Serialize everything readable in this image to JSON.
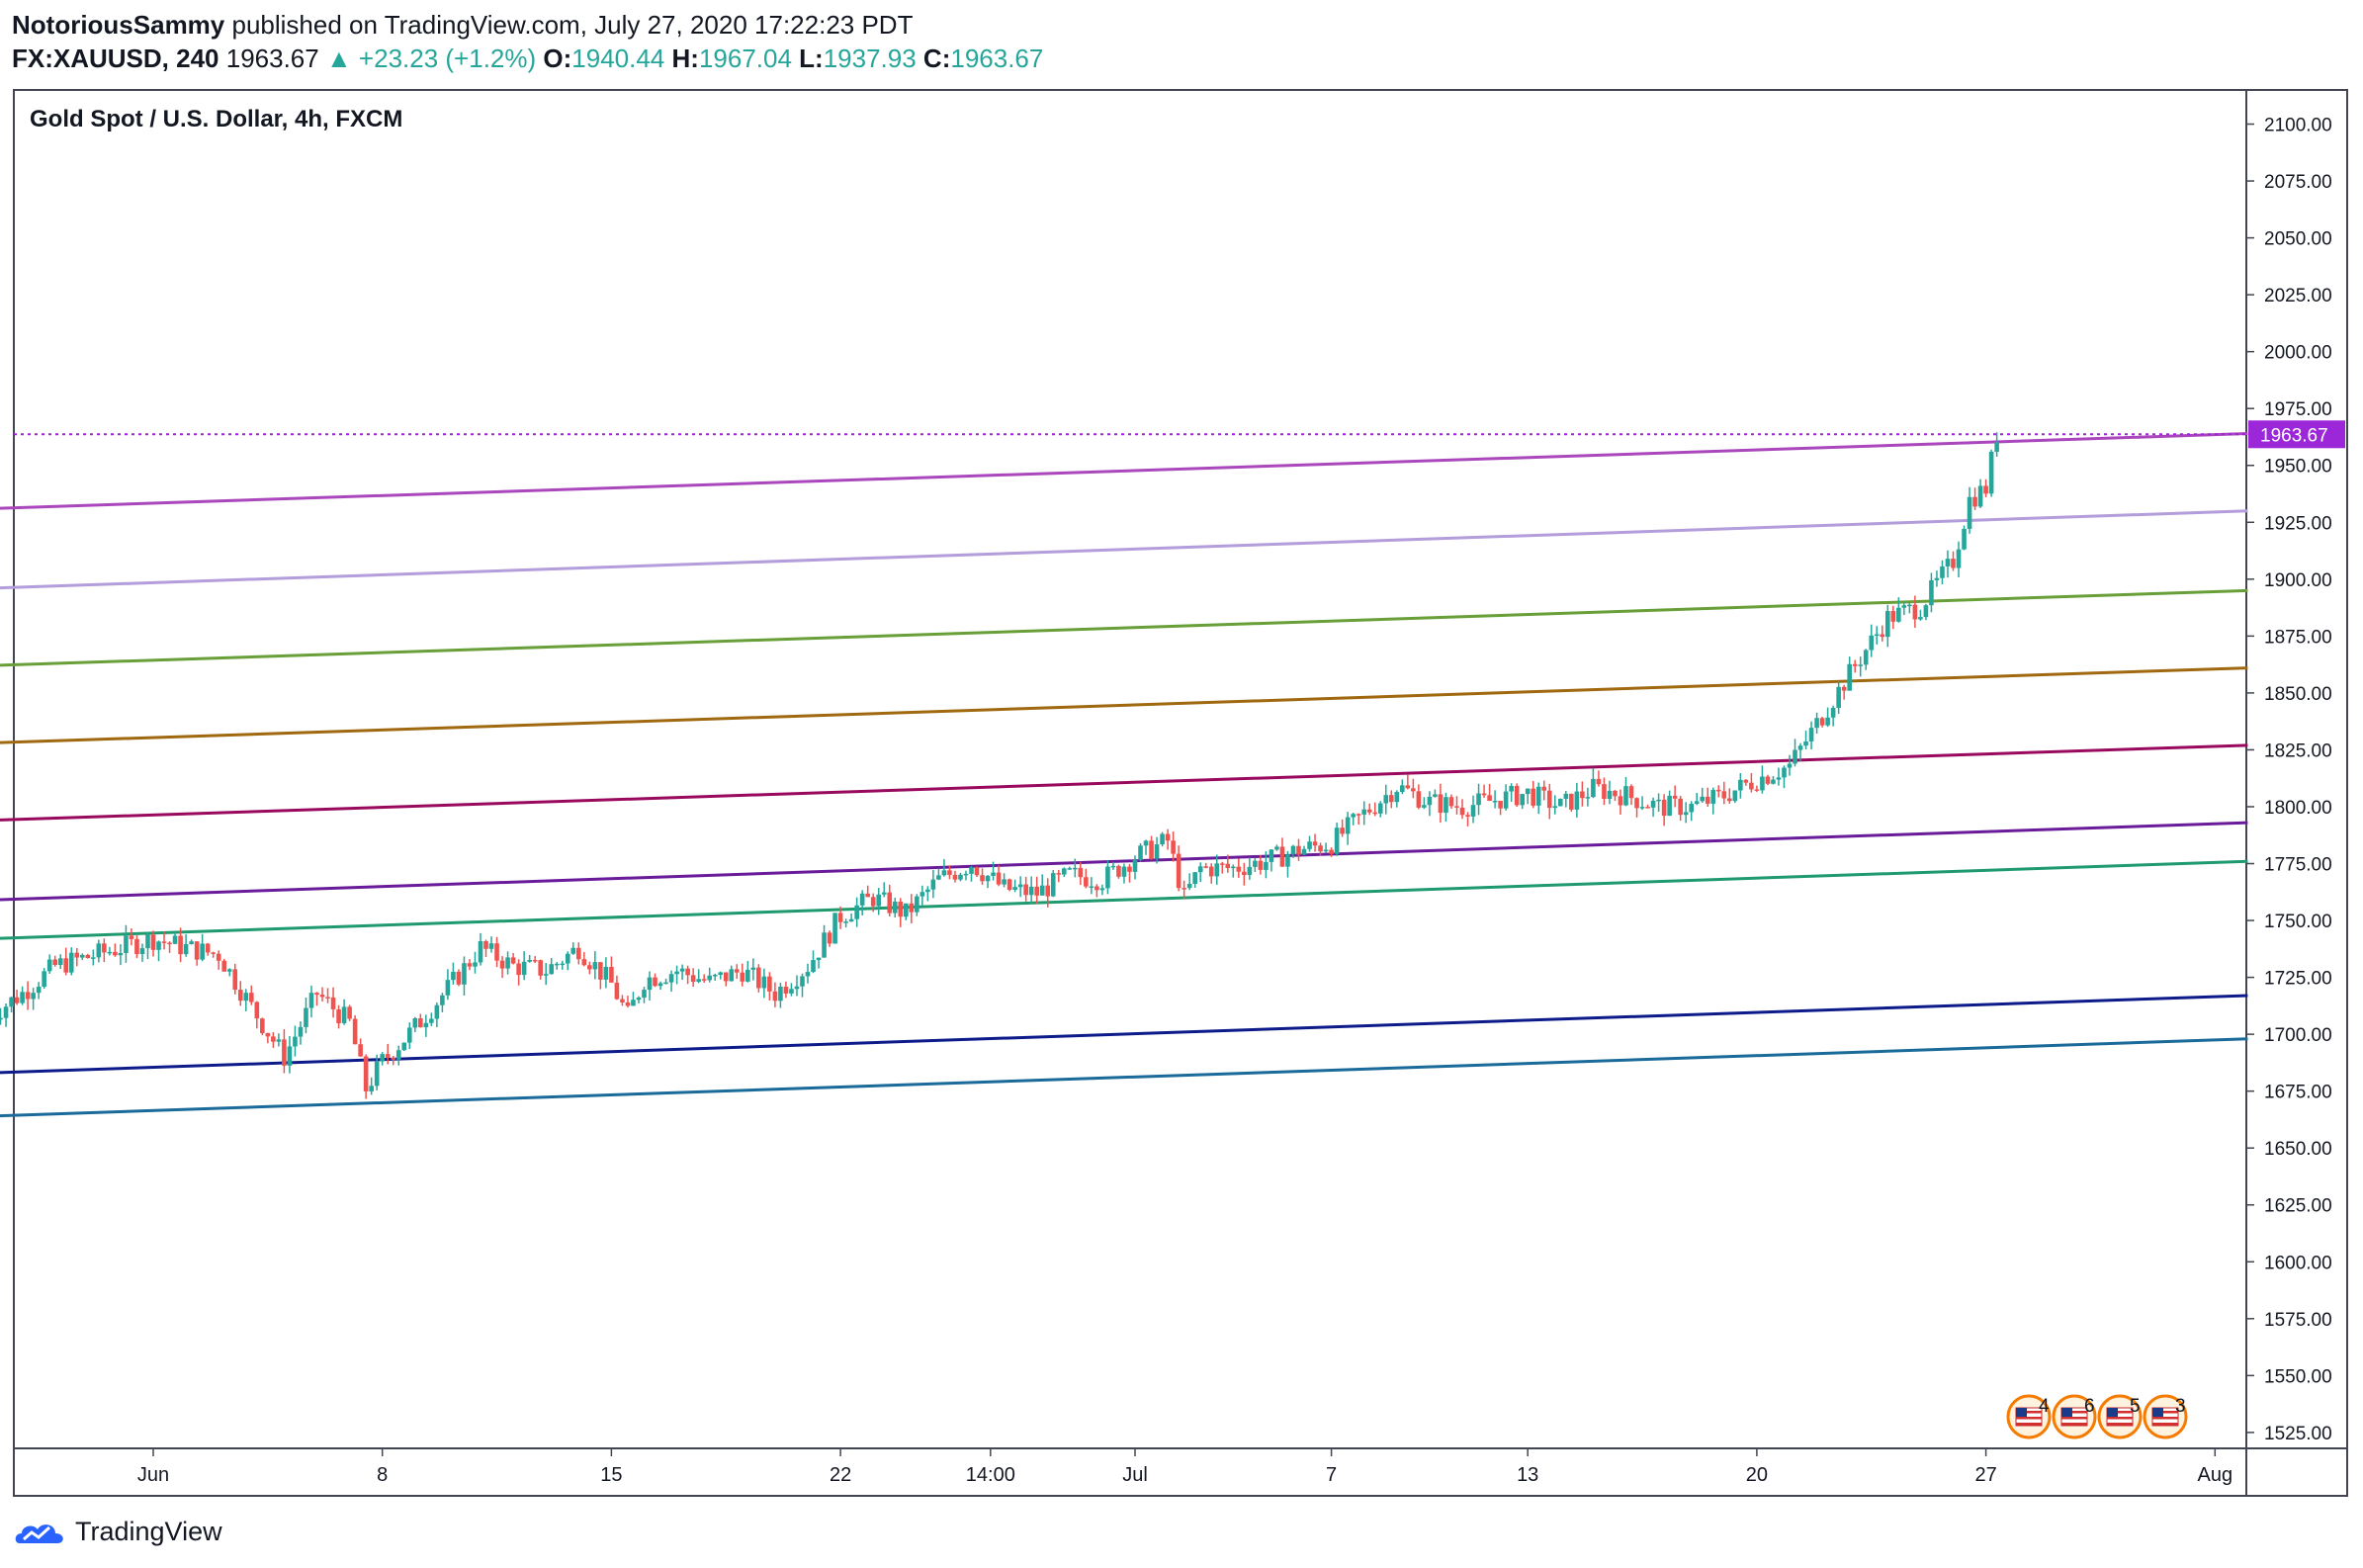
{
  "header": {
    "author": "NotoriousSammy",
    "published_text": "published on TradingView.com, July 27, 2020 17:22:23 PDT",
    "symbol": "FX:XAUUSD, 240",
    "price": "1963.67",
    "change_arrow": "▲",
    "change": "+23.23 (+1.2%)",
    "open_label": "O:",
    "open": "1940.44",
    "high_label": "H:",
    "high": "1967.04",
    "low_label": "L:",
    "low": "1937.93",
    "close_label": "C:",
    "close": "1963.67"
  },
  "footer": {
    "brand": "TradingView",
    "logo_icon": "tradingview-cloud-icon"
  },
  "colors": {
    "up": "#26a69a",
    "down": "#ef5350",
    "price_tag": "#9c27d8"
  },
  "chart_data": {
    "type": "candlestick",
    "title": "Gold Spot / U.S. Dollar, 4h, FXCM",
    "ylim": [
      1518,
      2115
    ],
    "grid": false,
    "y_ticks": [
      "2100.00",
      "2075.00",
      "2050.00",
      "2025.00",
      "2000.00",
      "1975.00",
      "1950.00",
      "1925.00",
      "1900.00",
      "1875.00",
      "1850.00",
      "1825.00",
      "1800.00",
      "1775.00",
      "1750.00",
      "1725.00",
      "1700.00",
      "1675.00",
      "1650.00",
      "1625.00",
      "1600.00",
      "1575.00",
      "1550.00",
      "1525.00"
    ],
    "x_ticks": [
      {
        "label": "Jun",
        "date": "2020-06-01"
      },
      {
        "label": "8",
        "date": "2020-06-08"
      },
      {
        "label": "15",
        "date": "2020-06-15"
      },
      {
        "label": "22",
        "date": "2020-06-22"
      },
      {
        "label": "14:00",
        "date": "2020-06-26T14:00"
      },
      {
        "label": "Jul",
        "date": "2020-07-01"
      },
      {
        "label": "7",
        "date": "2020-07-07"
      },
      {
        "label": "13",
        "date": "2020-07-13"
      },
      {
        "label": "20",
        "date": "2020-07-20"
      },
      {
        "label": "27",
        "date": "2020-07-27"
      },
      {
        "label": "Aug",
        "date": "2020-08-03"
      }
    ],
    "last_price": {
      "value": 1963.67,
      "label": "1963.67"
    },
    "channel_lines": [
      {
        "color": "#ab47bc",
        "start": [
          "2020-05-27",
          1931
        ],
        "end": [
          "2020-08-04",
          1964
        ]
      },
      {
        "color": "#b39ddb",
        "start": [
          "2020-05-27",
          1896
        ],
        "end": [
          "2020-08-04",
          1930
        ]
      },
      {
        "color": "#689f38",
        "start": [
          "2020-05-27",
          1862
        ],
        "end": [
          "2020-08-04",
          1895
        ]
      },
      {
        "color": "#a0680f",
        "start": [
          "2020-05-27",
          1828
        ],
        "end": [
          "2020-08-04",
          1861
        ]
      },
      {
        "color": "#990a5e",
        "start": [
          "2020-05-27",
          1794
        ],
        "end": [
          "2020-08-04",
          1827
        ]
      },
      {
        "color": "#6a1b9a",
        "start": [
          "2020-05-27",
          1759
        ],
        "end": [
          "2020-08-04",
          1793
        ]
      },
      {
        "color": "#1e9a6e",
        "start": [
          "2020-05-27",
          1742
        ],
        "end": [
          "2020-08-04",
          1776
        ]
      },
      {
        "color": "#0d1a8a",
        "start": [
          "2020-05-27",
          1683
        ],
        "end": [
          "2020-08-04",
          1717
        ]
      },
      {
        "color": "#1a6a9a",
        "start": [
          "2020-05-27",
          1664
        ],
        "end": [
          "2020-08-04",
          1698
        ]
      }
    ],
    "price_path": [
      [
        "2020-05-27",
        1708
      ],
      [
        "2020-05-28",
        1718
      ],
      [
        "2020-05-29",
        1730
      ],
      [
        "2020-06-01",
        1742
      ],
      [
        "2020-06-02",
        1738
      ],
      [
        "2020-06-03",
        1735
      ],
      [
        "2020-06-04",
        1712
      ],
      [
        "2020-06-05",
        1690
      ],
      [
        "2020-06-06",
        1718
      ],
      [
        "2020-06-07",
        1705
      ],
      [
        "2020-06-07T12:00",
        1676
      ],
      [
        "2020-06-08",
        1688
      ],
      [
        "2020-06-09",
        1703
      ],
      [
        "2020-06-10",
        1720
      ],
      [
        "2020-06-11",
        1738
      ],
      [
        "2020-06-12",
        1730
      ],
      [
        "2020-06-13",
        1728
      ],
      [
        "2020-06-14",
        1738
      ],
      [
        "2020-06-15",
        1722
      ],
      [
        "2020-06-15T12:00",
        1708
      ],
      [
        "2020-06-16",
        1724
      ],
      [
        "2020-06-17",
        1728
      ],
      [
        "2020-06-18",
        1723
      ],
      [
        "2020-06-19",
        1728
      ],
      [
        "2020-06-20",
        1718
      ],
      [
        "2020-06-21",
        1730
      ],
      [
        "2020-06-22",
        1752
      ],
      [
        "2020-06-23",
        1760
      ],
      [
        "2020-06-24",
        1753
      ],
      [
        "2020-06-25",
        1768
      ],
      [
        "2020-06-26",
        1775
      ],
      [
        "2020-06-27",
        1764
      ],
      [
        "2020-06-28",
        1762
      ],
      [
        "2020-06-29",
        1770
      ],
      [
        "2020-06-30",
        1768
      ],
      [
        "2020-07-01",
        1778
      ],
      [
        "2020-07-02",
        1785
      ],
      [
        "2020-07-02T12:00",
        1760
      ],
      [
        "2020-07-03",
        1773
      ],
      [
        "2020-07-04",
        1773
      ],
      [
        "2020-07-05",
        1776
      ],
      [
        "2020-07-06",
        1781
      ],
      [
        "2020-07-07",
        1784
      ],
      [
        "2020-07-08",
        1797
      ],
      [
        "2020-07-09",
        1809
      ],
      [
        "2020-07-10",
        1802
      ],
      [
        "2020-07-11",
        1800
      ],
      [
        "2020-07-12",
        1803
      ],
      [
        "2020-07-13",
        1806
      ],
      [
        "2020-07-14",
        1800
      ],
      [
        "2020-07-15",
        1808
      ],
      [
        "2020-07-16",
        1805
      ],
      [
        "2020-07-17",
        1800
      ],
      [
        "2020-07-18",
        1800
      ],
      [
        "2020-07-19",
        1805
      ],
      [
        "2020-07-20",
        1812
      ],
      [
        "2020-07-21",
        1818
      ],
      [
        "2020-07-22",
        1840
      ],
      [
        "2020-07-23",
        1862
      ],
      [
        "2020-07-24",
        1883
      ],
      [
        "2020-07-25",
        1888
      ],
      [
        "2020-07-26",
        1908
      ],
      [
        "2020-07-26T12:00",
        1935
      ],
      [
        "2020-07-27",
        1940
      ],
      [
        "2020-07-27T08:00",
        1963.67
      ]
    ],
    "event_markers": [
      {
        "icon": "us-flag-icon",
        "count": "4"
      },
      {
        "icon": "us-flag-icon",
        "count": "6"
      },
      {
        "icon": "us-flag-icon",
        "count": "5"
      },
      {
        "icon": "us-flag-icon",
        "count": "3"
      }
    ]
  }
}
